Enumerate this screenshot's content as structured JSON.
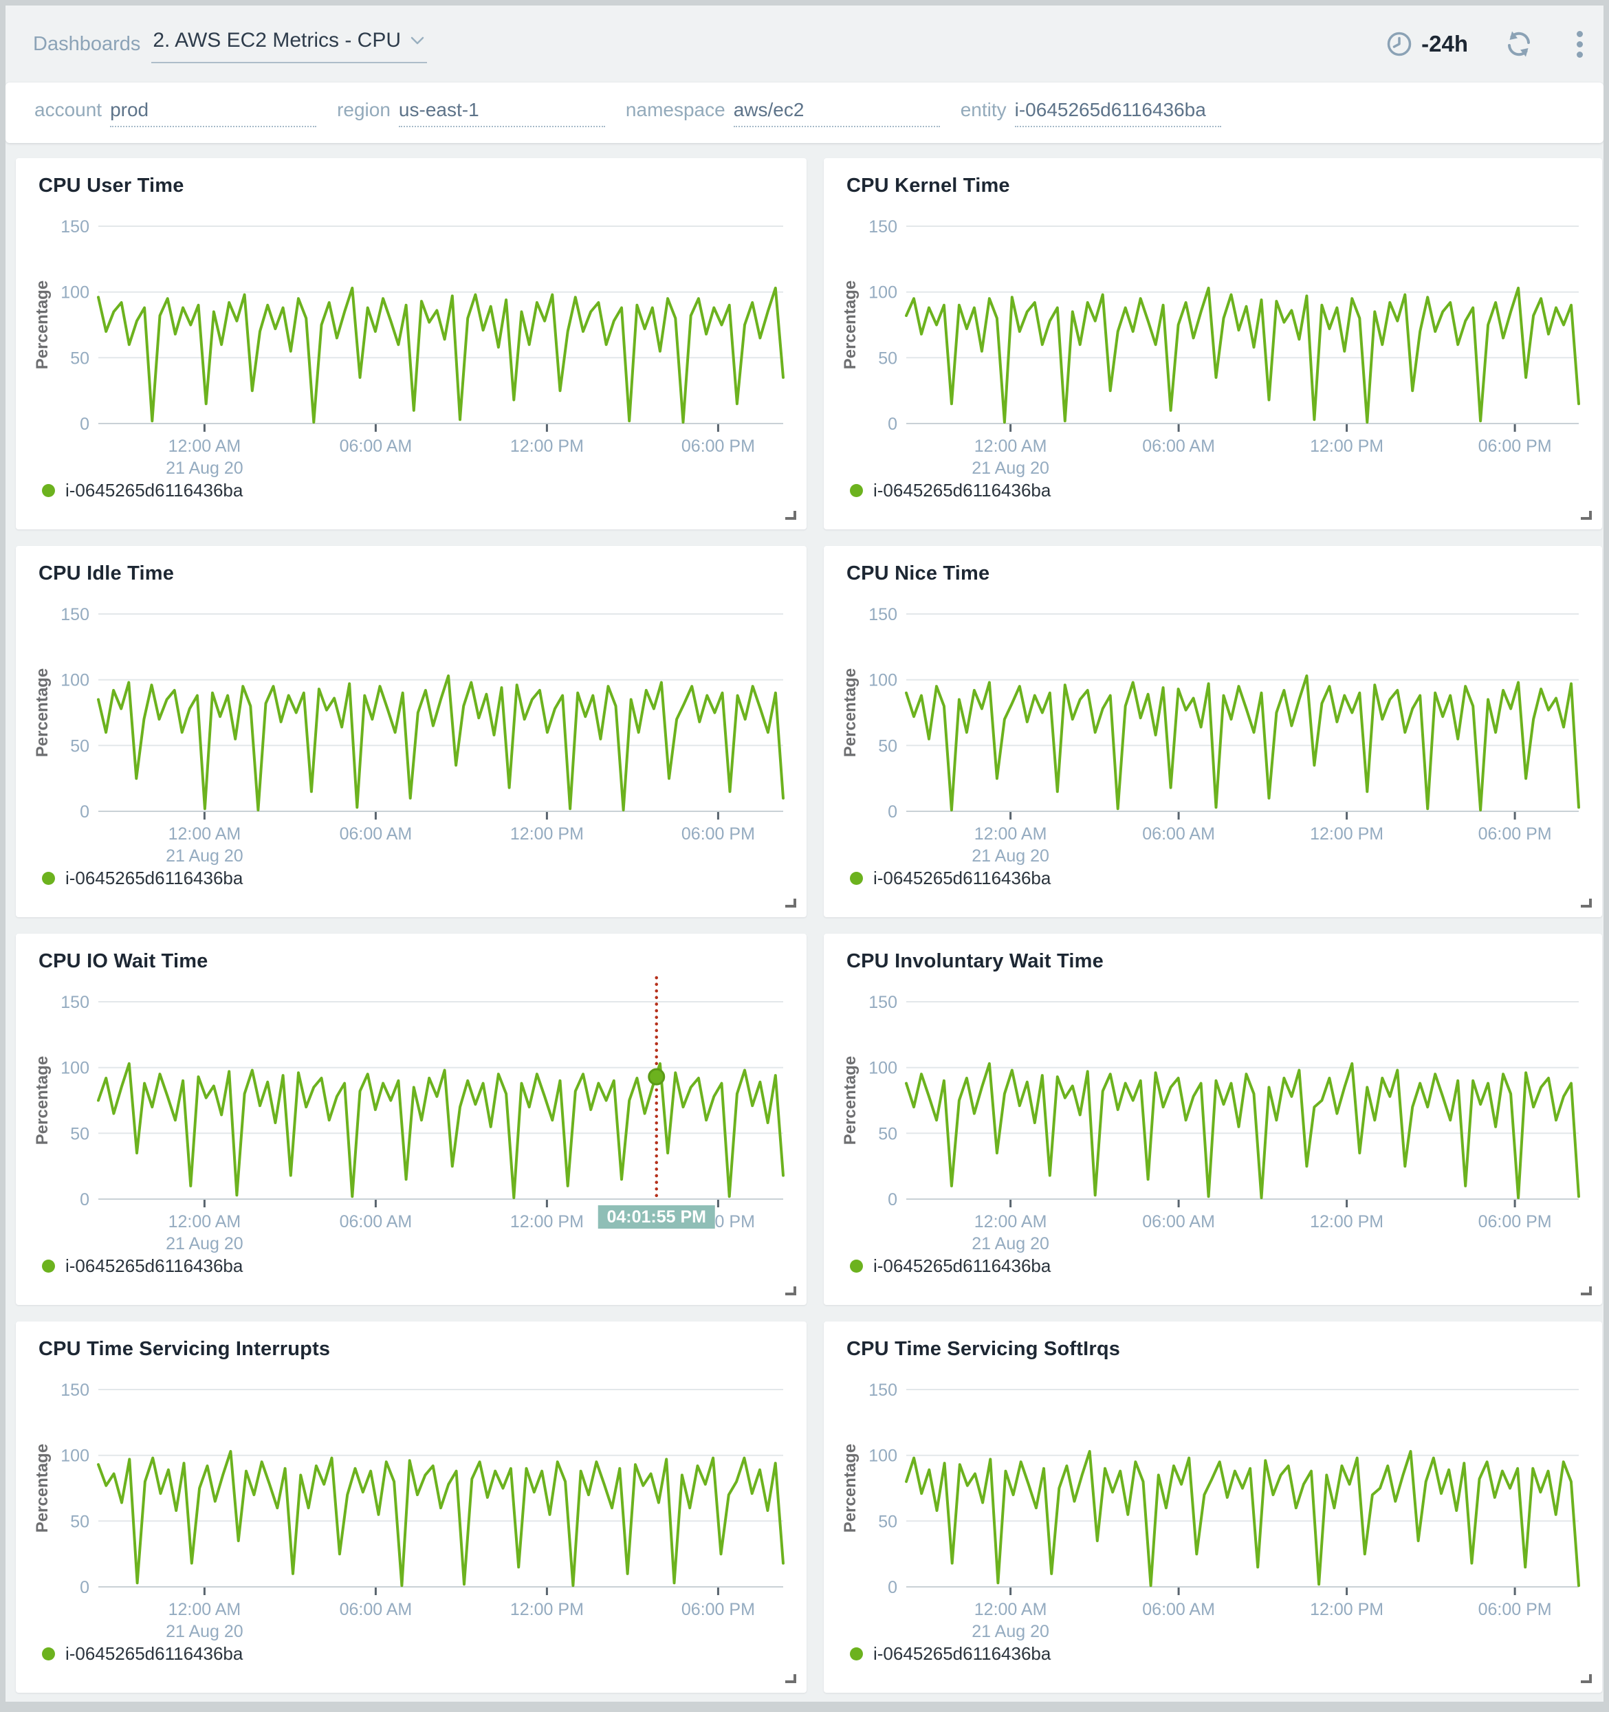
{
  "header": {
    "breadcrumb": "Dashboards",
    "title": "2. AWS EC2 Metrics - CPU",
    "time_range": "-24h"
  },
  "filters": [
    {
      "label": "account",
      "value": "prod"
    },
    {
      "label": "region",
      "value": "us-east-1"
    },
    {
      "label": "namespace",
      "value": "aws/ec2"
    },
    {
      "label": "entity",
      "value": "i-0645265d6116436ba"
    }
  ],
  "icons": [
    "clock-icon",
    "refresh-icon",
    "kebab-menu-icon",
    "chevron-down-icon",
    "resize-corner-icon"
  ],
  "style": {
    "accent_green": "#6cb21e",
    "crosshair": "#b5311c",
    "marker_ring": "#5a9a16",
    "tooltip_bg": "#8fbeb6",
    "grid_line": "#e3e7ea",
    "axis_line": "#c9d1d6",
    "tick_mark": "#59646e",
    "tick_label": "#94abc0"
  },
  "chart_data": [
    {
      "type": "line",
      "title": "CPU User Time",
      "ylabel": "Percentage",
      "ylim": [
        0,
        150
      ],
      "yticks": [
        0,
        50,
        100,
        150
      ],
      "x_ticks": [
        {
          "label": "12:00 AM",
          "sublabel": "21 Aug 20",
          "f": 0.155
        },
        {
          "label": "06:00 AM",
          "f": 0.405
        },
        {
          "label": "12:00 PM",
          "f": 0.655
        },
        {
          "label": "06:00 PM",
          "f": 0.905
        }
      ],
      "series": [
        {
          "name": "i-0645265d6116436ba",
          "color": "#6cb21e",
          "values": [
            96,
            70,
            85,
            92,
            60,
            78,
            88,
            2,
            82,
            95,
            68,
            88,
            75,
            90,
            15,
            85,
            60,
            92,
            78,
            98,
            25,
            70,
            90,
            72,
            88,
            55,
            95,
            80,
            1,
            75,
            92,
            65,
            85,
            103,
            35,
            88,
            70,
            95,
            78,
            60,
            90,
            10,
            93,
            77,
            86,
            64,
            97,
            3,
            80,
            98,
            71,
            89,
            58,
            94,
            18,
            85,
            60,
            92,
            78,
            98,
            25,
            70,
            96,
            70,
            85,
            92,
            60,
            78,
            88,
            2,
            90,
            72,
            88,
            55,
            95,
            80,
            1,
            82,
            95,
            68,
            88,
            75,
            90,
            15,
            75,
            92,
            65,
            85,
            103,
            35
          ]
        }
      ]
    },
    {
      "type": "line",
      "title": "CPU Kernel Time",
      "ylabel": "Percentage",
      "ylim": [
        0,
        150
      ],
      "yticks": [
        0,
        50,
        100,
        150
      ],
      "x_ticks": [
        {
          "label": "12:00 AM",
          "sublabel": "21 Aug 20",
          "f": 0.155
        },
        {
          "label": "06:00 AM",
          "f": 0.405
        },
        {
          "label": "12:00 PM",
          "f": 0.655
        },
        {
          "label": "06:00 PM",
          "f": 0.905
        }
      ],
      "series": [
        {
          "name": "i-0645265d6116436ba",
          "color": "#6cb21e",
          "values": [
            82,
            95,
            68,
            88,
            75,
            90,
            15,
            90,
            72,
            88,
            55,
            95,
            80,
            1,
            96,
            70,
            85,
            92,
            60,
            78,
            88,
            2,
            85,
            60,
            92,
            78,
            98,
            25,
            70,
            88,
            70,
            95,
            78,
            60,
            90,
            10,
            75,
            92,
            65,
            85,
            103,
            35,
            80,
            98,
            71,
            89,
            58,
            94,
            18,
            93,
            77,
            86,
            64,
            97,
            3,
            90,
            72,
            88,
            55,
            95,
            80,
            1,
            85,
            60,
            92,
            78,
            98,
            25,
            70,
            96,
            70,
            85,
            92,
            60,
            78,
            88,
            2,
            75,
            92,
            65,
            85,
            103,
            35,
            82,
            95,
            68,
            88,
            75,
            90,
            15
          ]
        }
      ]
    },
    {
      "type": "line",
      "title": "CPU Idle Time",
      "ylabel": "Percentage",
      "ylim": [
        0,
        150
      ],
      "yticks": [
        0,
        50,
        100,
        150
      ],
      "x_ticks": [
        {
          "label": "12:00 AM",
          "sublabel": "21 Aug 20",
          "f": 0.155
        },
        {
          "label": "06:00 AM",
          "f": 0.405
        },
        {
          "label": "12:00 PM",
          "f": 0.655
        },
        {
          "label": "06:00 PM",
          "f": 0.905
        }
      ],
      "series": [
        {
          "name": "i-0645265d6116436ba",
          "color": "#6cb21e",
          "values": [
            85,
            60,
            92,
            78,
            98,
            25,
            70,
            96,
            70,
            85,
            92,
            60,
            78,
            88,
            2,
            90,
            72,
            88,
            55,
            95,
            80,
            1,
            82,
            95,
            68,
            88,
            75,
            90,
            15,
            93,
            77,
            86,
            64,
            97,
            3,
            88,
            70,
            95,
            78,
            60,
            90,
            10,
            75,
            92,
            65,
            85,
            103,
            35,
            80,
            98,
            71,
            89,
            58,
            94,
            18,
            96,
            70,
            85,
            92,
            60,
            78,
            88,
            2,
            90,
            72,
            88,
            55,
            95,
            80,
            1,
            85,
            60,
            92,
            78,
            98,
            25,
            70,
            82,
            95,
            68,
            88,
            75,
            90,
            15,
            88,
            70,
            95,
            78,
            60,
            90,
            10
          ]
        }
      ]
    },
    {
      "type": "line",
      "title": "CPU Nice Time",
      "ylabel": "Percentage",
      "ylim": [
        0,
        150
      ],
      "yticks": [
        0,
        50,
        100,
        150
      ],
      "x_ticks": [
        {
          "label": "12:00 AM",
          "sublabel": "21 Aug 20",
          "f": 0.155
        },
        {
          "label": "06:00 AM",
          "f": 0.405
        },
        {
          "label": "12:00 PM",
          "f": 0.655
        },
        {
          "label": "06:00 PM",
          "f": 0.905
        }
      ],
      "series": [
        {
          "name": "i-0645265d6116436ba",
          "color": "#6cb21e",
          "values": [
            90,
            72,
            88,
            55,
            95,
            80,
            1,
            85,
            60,
            92,
            78,
            98,
            25,
            70,
            82,
            95,
            68,
            88,
            75,
            90,
            15,
            96,
            70,
            85,
            92,
            60,
            78,
            88,
            2,
            80,
            98,
            71,
            89,
            58,
            94,
            18,
            93,
            77,
            86,
            64,
            97,
            3,
            88,
            70,
            95,
            78,
            60,
            90,
            10,
            75,
            92,
            65,
            85,
            103,
            35,
            82,
            95,
            68,
            88,
            75,
            90,
            15,
            96,
            70,
            85,
            92,
            60,
            78,
            88,
            2,
            90,
            72,
            88,
            55,
            95,
            80,
            1,
            85,
            60,
            92,
            78,
            98,
            25,
            70,
            93,
            77,
            86,
            64,
            97,
            3
          ]
        }
      ]
    },
    {
      "type": "line",
      "title": "CPU IO Wait Time",
      "ylabel": "Percentage",
      "ylim": [
        0,
        150
      ],
      "yticks": [
        0,
        50,
        100,
        150
      ],
      "x_ticks": [
        {
          "label": "12:00 AM",
          "sublabel": "21 Aug 20",
          "f": 0.155
        },
        {
          "label": "06:00 AM",
          "f": 0.405
        },
        {
          "label": "12:00 PM",
          "f": 0.655
        },
        {
          "label": "06:00 PM",
          "f": 0.905
        }
      ],
      "crosshair": {
        "f": 0.815,
        "value": 93,
        "time_label": "04:01:55 PM"
      },
      "series": [
        {
          "name": "i-0645265d6116436ba",
          "color": "#6cb21e",
          "values": [
            75,
            92,
            65,
            85,
            103,
            35,
            88,
            70,
            95,
            78,
            60,
            90,
            10,
            93,
            77,
            86,
            64,
            97,
            3,
            80,
            98,
            71,
            89,
            58,
            94,
            18,
            96,
            70,
            85,
            92,
            60,
            78,
            88,
            2,
            82,
            95,
            68,
            88,
            75,
            90,
            15,
            85,
            60,
            92,
            78,
            98,
            25,
            70,
            90,
            72,
            88,
            55,
            95,
            80,
            1,
            88,
            70,
            95,
            78,
            60,
            90,
            10,
            82,
            95,
            68,
            88,
            75,
            90,
            15,
            75,
            92,
            65,
            85,
            103,
            35,
            96,
            70,
            85,
            92,
            60,
            78,
            88,
            2,
            80,
            98,
            71,
            89,
            58,
            94,
            18
          ]
        }
      ]
    },
    {
      "type": "line",
      "title": "CPU Involuntary Wait Time",
      "ylabel": "Percentage",
      "ylim": [
        0,
        150
      ],
      "yticks": [
        0,
        50,
        100,
        150
      ],
      "x_ticks": [
        {
          "label": "12:00 AM",
          "sublabel": "21 Aug 20",
          "f": 0.155
        },
        {
          "label": "06:00 AM",
          "f": 0.405
        },
        {
          "label": "12:00 PM",
          "f": 0.655
        },
        {
          "label": "06:00 PM",
          "f": 0.905
        }
      ],
      "series": [
        {
          "name": "i-0645265d6116436ba",
          "color": "#6cb21e",
          "values": [
            88,
            70,
            95,
            78,
            60,
            90,
            10,
            75,
            92,
            65,
            85,
            103,
            35,
            80,
            98,
            71,
            89,
            58,
            94,
            18,
            93,
            77,
            86,
            64,
            97,
            3,
            82,
            95,
            68,
            88,
            75,
            90,
            15,
            96,
            70,
            85,
            92,
            60,
            78,
            88,
            2,
            90,
            72,
            88,
            55,
            95,
            80,
            1,
            85,
            60,
            92,
            78,
            98,
            25,
            70,
            75,
            92,
            65,
            85,
            103,
            35,
            85,
            60,
            92,
            78,
            98,
            25,
            70,
            88,
            70,
            95,
            78,
            60,
            90,
            10,
            90,
            72,
            88,
            55,
            95,
            80,
            1,
            96,
            70,
            85,
            92,
            60,
            78,
            88,
            2
          ]
        }
      ]
    },
    {
      "type": "line",
      "title": "CPU Time Servicing Interrupts",
      "ylabel": "Percentage",
      "ylim": [
        0,
        150
      ],
      "yticks": [
        0,
        50,
        100,
        150
      ],
      "x_ticks": [
        {
          "label": "12:00 AM",
          "sublabel": "21 Aug 20",
          "f": 0.155
        },
        {
          "label": "06:00 AM",
          "f": 0.405
        },
        {
          "label": "12:00 PM",
          "f": 0.655
        },
        {
          "label": "06:00 PM",
          "f": 0.905
        }
      ],
      "series": [
        {
          "name": "i-0645265d6116436ba",
          "color": "#6cb21e",
          "values": [
            93,
            77,
            86,
            64,
            97,
            3,
            80,
            98,
            71,
            89,
            58,
            94,
            18,
            75,
            92,
            65,
            85,
            103,
            35,
            88,
            70,
            95,
            78,
            60,
            90,
            10,
            85,
            60,
            92,
            78,
            98,
            25,
            70,
            90,
            72,
            88,
            55,
            95,
            80,
            1,
            96,
            70,
            85,
            92,
            60,
            78,
            88,
            2,
            82,
            95,
            68,
            88,
            75,
            90,
            15,
            90,
            72,
            88,
            55,
            95,
            80,
            1,
            88,
            70,
            95,
            78,
            60,
            90,
            10,
            93,
            77,
            86,
            64,
            97,
            3,
            85,
            60,
            92,
            78,
            98,
            25,
            70,
            80,
            98,
            71,
            89,
            58,
            94,
            18
          ]
        }
      ]
    },
    {
      "type": "line",
      "title": "CPU Time Servicing SoftIrqs",
      "ylabel": "Percentage",
      "ylim": [
        0,
        150
      ],
      "yticks": [
        0,
        50,
        100,
        150
      ],
      "x_ticks": [
        {
          "label": "12:00 AM",
          "sublabel": "21 Aug 20",
          "f": 0.155
        },
        {
          "label": "06:00 AM",
          "f": 0.405
        },
        {
          "label": "12:00 PM",
          "f": 0.655
        },
        {
          "label": "06:00 PM",
          "f": 0.905
        }
      ],
      "series": [
        {
          "name": "i-0645265d6116436ba",
          "color": "#6cb21e",
          "values": [
            80,
            98,
            71,
            89,
            58,
            94,
            18,
            93,
            77,
            86,
            64,
            97,
            3,
            88,
            70,
            95,
            78,
            60,
            90,
            10,
            75,
            92,
            65,
            85,
            103,
            35,
            90,
            72,
            88,
            55,
            95,
            80,
            1,
            85,
            60,
            92,
            78,
            98,
            25,
            70,
            82,
            95,
            68,
            88,
            75,
            90,
            15,
            96,
            70,
            85,
            92,
            60,
            78,
            88,
            2,
            85,
            60,
            92,
            78,
            98,
            25,
            70,
            75,
            92,
            65,
            85,
            103,
            35,
            80,
            98,
            71,
            89,
            58,
            94,
            18,
            82,
            95,
            68,
            88,
            75,
            90,
            15,
            90,
            72,
            88,
            55,
            95,
            80,
            1
          ]
        }
      ]
    }
  ]
}
